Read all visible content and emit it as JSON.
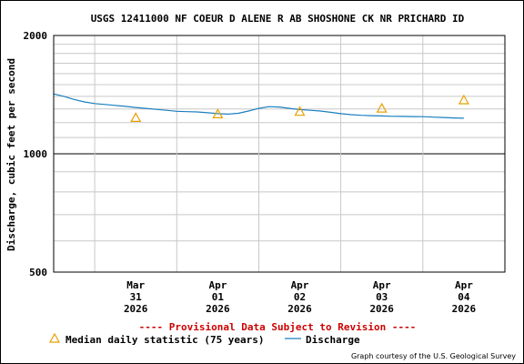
{
  "chart_data": {
    "type": "line",
    "title": "USGS 12411000 NF COEUR D ALENE R AB SHOSHONE CK NR PRICHARD ID",
    "ylabel": "Discharge, cubic feet per second",
    "xlabel": "",
    "y_scale": "log",
    "ylim": [
      500,
      2000
    ],
    "y_ticks": [
      "500",
      "1000",
      "2000"
    ],
    "x_ticks": [
      {
        "month": "Mar",
        "day": "31",
        "year": "2026"
      },
      {
        "month": "Apr",
        "day": "01",
        "year": "2026"
      },
      {
        "month": "Apr",
        "day": "02",
        "year": "2026"
      },
      {
        "month": "Apr",
        "day": "03",
        "year": "2026"
      },
      {
        "month": "Apr",
        "day": "04",
        "year": "2026"
      }
    ],
    "xlim": [
      "2026-03-30 12:00",
      "2026-04-05 00:00"
    ],
    "grid": true,
    "series": [
      {
        "name": "Discharge",
        "color": "#1a7fbf",
        "points": [
          {
            "x": "2026-03-30 12:00",
            "y": 1420
          },
          {
            "x": "2026-03-30 15:00",
            "y": 1400
          },
          {
            "x": "2026-03-30 18:00",
            "y": 1375
          },
          {
            "x": "2026-03-30 21:00",
            "y": 1355
          },
          {
            "x": "2026-03-31 00:00",
            "y": 1342
          },
          {
            "x": "2026-03-31 03:00",
            "y": 1335
          },
          {
            "x": "2026-03-31 06:00",
            "y": 1328
          },
          {
            "x": "2026-03-31 09:00",
            "y": 1320
          },
          {
            "x": "2026-03-31 12:00",
            "y": 1312
          },
          {
            "x": "2026-03-31 15:00",
            "y": 1305
          },
          {
            "x": "2026-03-31 18:00",
            "y": 1297
          },
          {
            "x": "2026-03-31 21:00",
            "y": 1290
          },
          {
            "x": "2026-04-01 00:00",
            "y": 1283
          },
          {
            "x": "2026-04-01 03:00",
            "y": 1280
          },
          {
            "x": "2026-04-01 06:00",
            "y": 1278
          },
          {
            "x": "2026-04-01 09:00",
            "y": 1272
          },
          {
            "x": "2026-04-01 12:00",
            "y": 1265
          },
          {
            "x": "2026-04-01 15:00",
            "y": 1262
          },
          {
            "x": "2026-04-01 18:00",
            "y": 1268
          },
          {
            "x": "2026-04-01 21:00",
            "y": 1285
          },
          {
            "x": "2026-04-02 00:00",
            "y": 1305
          },
          {
            "x": "2026-04-02 03:00",
            "y": 1318
          },
          {
            "x": "2026-04-02 06:00",
            "y": 1315
          },
          {
            "x": "2026-04-02 09:00",
            "y": 1305
          },
          {
            "x": "2026-04-02 12:00",
            "y": 1296
          },
          {
            "x": "2026-04-02 15:00",
            "y": 1290
          },
          {
            "x": "2026-04-02 18:00",
            "y": 1285
          },
          {
            "x": "2026-04-02 21:00",
            "y": 1275
          },
          {
            "x": "2026-04-03 00:00",
            "y": 1265
          },
          {
            "x": "2026-04-03 03:00",
            "y": 1258
          },
          {
            "x": "2026-04-03 06:00",
            "y": 1253
          },
          {
            "x": "2026-04-03 09:00",
            "y": 1250
          },
          {
            "x": "2026-04-03 12:00",
            "y": 1248
          },
          {
            "x": "2026-04-03 15:00",
            "y": 1246
          },
          {
            "x": "2026-04-03 18:00",
            "y": 1245
          },
          {
            "x": "2026-04-03 21:00",
            "y": 1244
          },
          {
            "x": "2026-04-04 00:00",
            "y": 1243
          },
          {
            "x": "2026-04-04 03:00",
            "y": 1240
          },
          {
            "x": "2026-04-04 06:00",
            "y": 1237
          },
          {
            "x": "2026-04-04 09:00",
            "y": 1234
          },
          {
            "x": "2026-04-04 12:00",
            "y": 1232
          }
        ]
      },
      {
        "name": "Median daily statistic (75 years)",
        "color": "#e8a000",
        "marker": "triangle",
        "points": [
          {
            "x": "2026-03-31",
            "y": 1235
          },
          {
            "x": "2026-04-01",
            "y": 1262
          },
          {
            "x": "2026-04-02",
            "y": 1280
          },
          {
            "x": "2026-04-03",
            "y": 1305
          },
          {
            "x": "2026-04-04",
            "y": 1370
          }
        ]
      }
    ]
  },
  "notice": "---- Provisional Data Subject to Revision ----",
  "legend": {
    "median_label": "Median daily statistic (75 years)",
    "discharge_label": "Discharge"
  },
  "credit": "Graph courtesy of the U.S. Geological Survey",
  "colors": {
    "notice": "#cc0000",
    "discharge": "#1a7fbf",
    "median": "#e8a000",
    "grid": "#c8c8c8"
  }
}
